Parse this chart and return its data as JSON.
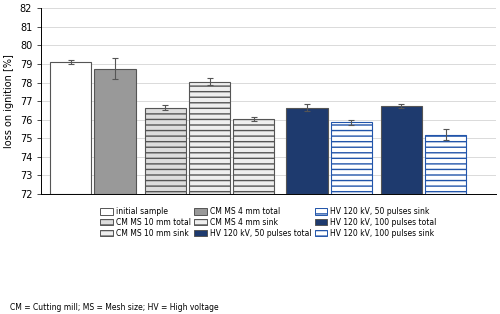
{
  "bars": [
    {
      "label": "initial sample",
      "value": 79.1,
      "error": 0.12,
      "color": "#ffffff",
      "edgecolor": "#555555",
      "hatch": "",
      "lw": 0.8
    },
    {
      "label": "CM MS 4 mm total",
      "value": 78.75,
      "error": 0.55,
      "color": "#999999",
      "edgecolor": "#555555",
      "hatch": "",
      "lw": 0.8
    },
    {
      "label": "CM MS 10 mm total",
      "value": 76.65,
      "error": 0.15,
      "color": "#dddddd",
      "edgecolor": "#555555",
      "hatch": "---",
      "lw": 0.8
    },
    {
      "label": "CM MS 10 mm sink",
      "value": 78.05,
      "error": 0.2,
      "color": "#eeeeee",
      "edgecolor": "#555555",
      "hatch": "---",
      "lw": 0.8
    },
    {
      "label": "CM MS 4 mm sink",
      "value": 76.05,
      "error": 0.12,
      "color": "#eeeeee",
      "edgecolor": "#555555",
      "hatch": "---",
      "lw": 0.8
    },
    {
      "label": "HV 120 kV, 50 pulses total",
      "value": 76.65,
      "error": 0.18,
      "color": "#1e3a6e",
      "edgecolor": "#555555",
      "hatch": "",
      "lw": 0.8
    },
    {
      "label": "HV 120 kV, 50 pulses sink",
      "value": 75.85,
      "error": 0.12,
      "color": "#ffffff",
      "edgecolor": "#2255aa",
      "hatch": "---",
      "lw": 0.8
    },
    {
      "label": "HV 120 kV, 100 pulses total",
      "value": 76.75,
      "error": 0.1,
      "color": "#1e3a6e",
      "edgecolor": "#555555",
      "hatch": "",
      "lw": 0.8
    },
    {
      "label": "HV 120 kV, 100 pulses sink",
      "value": 75.2,
      "error": 0.28,
      "color": "#ffffff",
      "edgecolor": "#2255aa",
      "hatch": "---",
      "lw": 0.8
    }
  ],
  "ylim": [
    72,
    82
  ],
  "yticks": [
    72,
    73,
    74,
    75,
    76,
    77,
    78,
    79,
    80,
    81,
    82
  ],
  "ylabel": "loss on ignition [%]",
  "caption": "CM = Cutting mill; MS = Mesh size; HV = High voltage",
  "legend_rows": [
    [
      {
        "label": "initial sample",
        "color": "#ffffff",
        "edgecolor": "#555555",
        "hatch": ""
      },
      {
        "label": "CM MS 10 mm total",
        "color": "#dddddd",
        "edgecolor": "#555555",
        "hatch": "---"
      },
      {
        "label": "CM MS 10 mm sink",
        "color": "#eeeeee",
        "edgecolor": "#555555",
        "hatch": "---"
      }
    ],
    [
      {
        "label": "CM MS 4 mm total",
        "color": "#999999",
        "edgecolor": "#555555",
        "hatch": ""
      },
      {
        "label": "CM MS 4 mm sink",
        "color": "#eeeeee",
        "edgecolor": "#555555",
        "hatch": "---"
      },
      {
        "label": "HV 120 kV, 50 pulses total",
        "color": "#1e3a6e",
        "edgecolor": "#555555",
        "hatch": ""
      }
    ],
    [
      {
        "label": "HV 120 kV, 50 pulses sink",
        "color": "#ffffff",
        "edgecolor": "#2255aa",
        "hatch": "---"
      },
      {
        "label": "HV 120 kV, 100 pulses total",
        "color": "#1e3a6e",
        "edgecolor": "#555555",
        "hatch": ""
      },
      {
        "label": "HV 120 kV, 100 pulses sink",
        "color": "#ffffff",
        "edgecolor": "#2255aa",
        "hatch": "---"
      }
    ]
  ],
  "bar_width": 0.7,
  "x_positions": [
    0,
    0.75,
    1.6,
    2.35,
    3.1,
    4.0,
    4.75,
    5.6,
    6.35
  ]
}
